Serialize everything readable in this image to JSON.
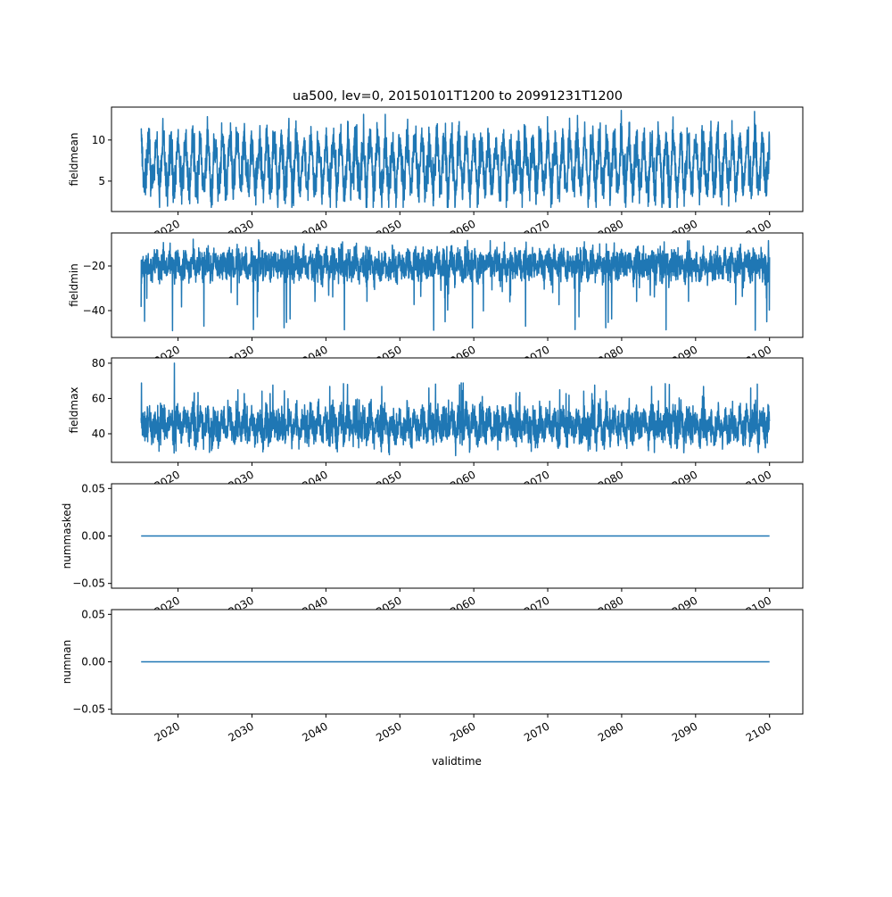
{
  "chart_data": {
    "type": "line",
    "title": "ua500, lev=0, 20150101T1200 to 20991231T1200",
    "xlabel": "validtime",
    "x_range": [
      "2015-01-01",
      "2099-12-31"
    ],
    "xlim_years": [
      2011,
      2104.5
    ],
    "xticks": [
      2020,
      2030,
      2040,
      2050,
      2060,
      2070,
      2080,
      2090,
      2100
    ],
    "xtick_labels": [
      "2020",
      "2030",
      "2040",
      "2050",
      "2060",
      "2070",
      "2080",
      "2090",
      "2100"
    ],
    "line_color": "#1f77b4",
    "grid": false,
    "subplots": [
      {
        "ylabel": "fieldmean",
        "ylim": [
          1.3,
          14.0
        ],
        "yticks": [
          5,
          10
        ],
        "ytick_labels": [
          "5",
          "10"
        ],
        "series_summary": {
          "mean": 7.0,
          "seasonal_amplitude": 2.8,
          "noise": 1.3,
          "min": 1.8,
          "max": 13.6
        }
      },
      {
        "ylabel": "fieldmin",
        "ylim": [
          -52,
          -5.2
        ],
        "yticks": [
          -40,
          -20
        ],
        "ytick_labels": [
          "−40",
          "−20"
        ],
        "series_summary": {
          "mean": -19.5,
          "seasonal_amplitude": 2.0,
          "noise": 3.5,
          "min": -49,
          "max": -8
        }
      },
      {
        "ylabel": "fieldmax",
        "ylim": [
          23.8,
          83
        ],
        "yticks": [
          40,
          60,
          80
        ],
        "ytick_labels": [
          "40",
          "60",
          "80"
        ],
        "series_summary": {
          "mean": 45,
          "seasonal_amplitude": 4,
          "noise": 5,
          "min": 26,
          "max": 80
        }
      },
      {
        "ylabel": "nummasked",
        "ylim": [
          -0.055,
          0.055
        ],
        "yticks": [
          -0.05,
          0.0,
          0.05
        ],
        "ytick_labels": [
          "−0.05",
          "0.00",
          "0.05"
        ],
        "series_summary": {
          "constant": 0
        }
      },
      {
        "ylabel": "numnan",
        "ylim": [
          -0.055,
          0.055
        ],
        "yticks": [
          -0.05,
          0.0,
          0.05
        ],
        "ytick_labels": [
          "−0.05",
          "0.00",
          "0.05"
        ],
        "series_summary": {
          "constant": 0
        }
      }
    ]
  }
}
